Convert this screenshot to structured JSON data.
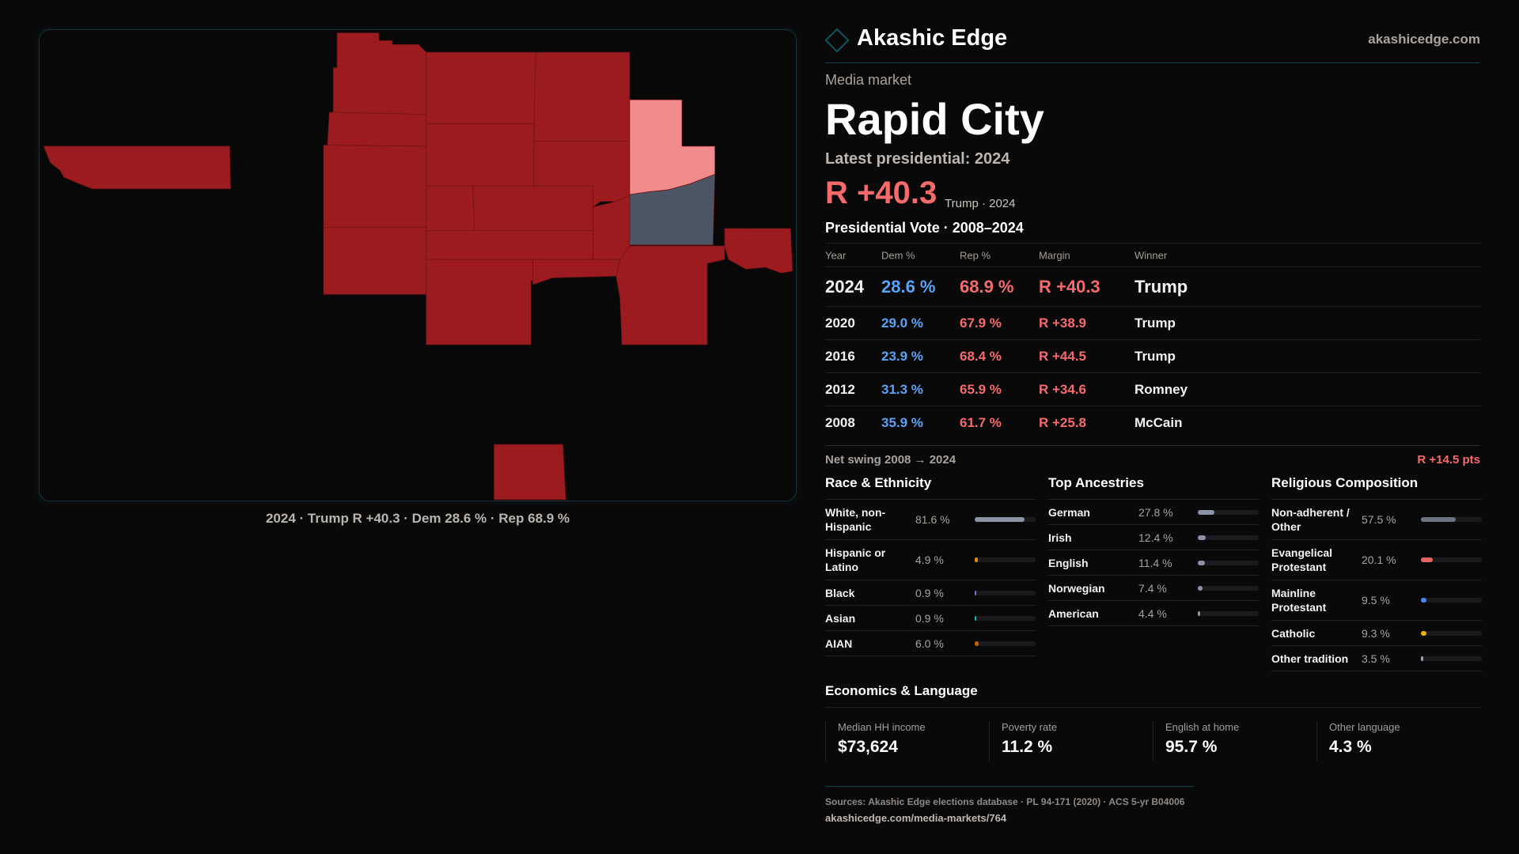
{
  "map": {
    "caption": "2024 · Trump R +40.3 · Dem 28.6 % · Rep 68.9 %",
    "colors": {
      "strong_r": "#9b1b1f",
      "lean_r": "#f28b8b",
      "selected": "#4b5563"
    }
  },
  "header": {
    "brand": "Akashic Edge",
    "url": "akashicedge.com",
    "logo_icon": "diamond-icon"
  },
  "market": {
    "kicker": "Media market",
    "title": "Rapid City",
    "latest": "Latest presidential: 2024",
    "margin": "R +40.3",
    "margin_sub": "Trump · 2024"
  },
  "presidential": {
    "title": "Presidential Vote · 2008–2024",
    "headers": [
      "Year",
      "Dem %",
      "Rep %",
      "Margin",
      "Winner"
    ],
    "rows": [
      [
        "2024",
        "28.6 %",
        "68.9 %",
        "R +40.3",
        "Trump"
      ],
      [
        "2020",
        "29.0 %",
        "67.9 %",
        "R +38.9",
        "Trump"
      ],
      [
        "2016",
        "23.9 %",
        "68.4 %",
        "R +44.5",
        "Trump"
      ],
      [
        "2012",
        "31.3 %",
        "65.9 %",
        "R +34.6",
        "Romney"
      ],
      [
        "2008",
        "35.9 %",
        "61.7 %",
        "R +25.8",
        "McCain"
      ]
    ]
  },
  "swing": {
    "label": "Net swing 2008 → 2024",
    "value": "R +14.5 pts"
  },
  "demographics": [
    {
      "title": "Race & Ethnicity",
      "items": [
        {
          "label": "White, non-Hispanic",
          "value": "81.6 %",
          "pct": 81.6,
          "color": "#8a94a6"
        },
        {
          "label": "Hispanic or Latino",
          "value": "4.9 %",
          "pct": 4.9,
          "color": "#d98a06"
        },
        {
          "label": "Black",
          "value": "0.9 %",
          "pct": 0.9,
          "color": "#7c6fd6"
        },
        {
          "label": "Asian",
          "value": "0.9 %",
          "pct": 0.9,
          "color": "#14b8a6"
        },
        {
          "label": "AIAN",
          "value": "6.0 %",
          "pct": 6.0,
          "color": "#c2610c"
        }
      ]
    },
    {
      "title": "Top Ancestries",
      "items": [
        {
          "label": "German",
          "value": "27.8 %",
          "pct": 27.8,
          "color": "#8a94a6"
        },
        {
          "label": "Irish",
          "value": "12.4 %",
          "pct": 12.4,
          "color": "#8a94a6"
        },
        {
          "label": "English",
          "value": "11.4 %",
          "pct": 11.4,
          "color": "#8a94a6"
        },
        {
          "label": "Norwegian",
          "value": "7.4 %",
          "pct": 7.4,
          "color": "#8a94a6"
        },
        {
          "label": "American",
          "value": "4.4 %",
          "pct": 4.4,
          "color": "#8a94a6"
        }
      ]
    },
    {
      "title": "Religious Composition",
      "items": [
        {
          "label": "Non-adherent / Other",
          "value": "57.5 %",
          "pct": 57.5,
          "color": "#6b7280"
        },
        {
          "label": "Evangelical Protestant",
          "value": "20.1 %",
          "pct": 20.1,
          "color": "#e06666"
        },
        {
          "label": "Mainline Protestant",
          "value": "9.5 %",
          "pct": 9.5,
          "color": "#4a86e8"
        },
        {
          "label": "Catholic",
          "value": "9.3 %",
          "pct": 9.3,
          "color": "#eab308"
        },
        {
          "label": "Other tradition",
          "value": "3.5 %",
          "pct": 3.5,
          "color": "#9ca3af"
        }
      ]
    }
  ],
  "economics": {
    "title": "Economics & Language",
    "cards": [
      {
        "label": "Median HH income",
        "value": "$73,624"
      },
      {
        "label": "Poverty rate",
        "value": "11.2 %"
      },
      {
        "label": "English at home",
        "value": "95.7 %"
      },
      {
        "label": "Other language",
        "value": "4.3 %"
      }
    ]
  },
  "footer": {
    "sources": "Sources: Akashic Edge elections database · PL 94-171 (2020) · ACS 5-yr B04006",
    "url": "akashicedge.com/media-markets/764"
  }
}
